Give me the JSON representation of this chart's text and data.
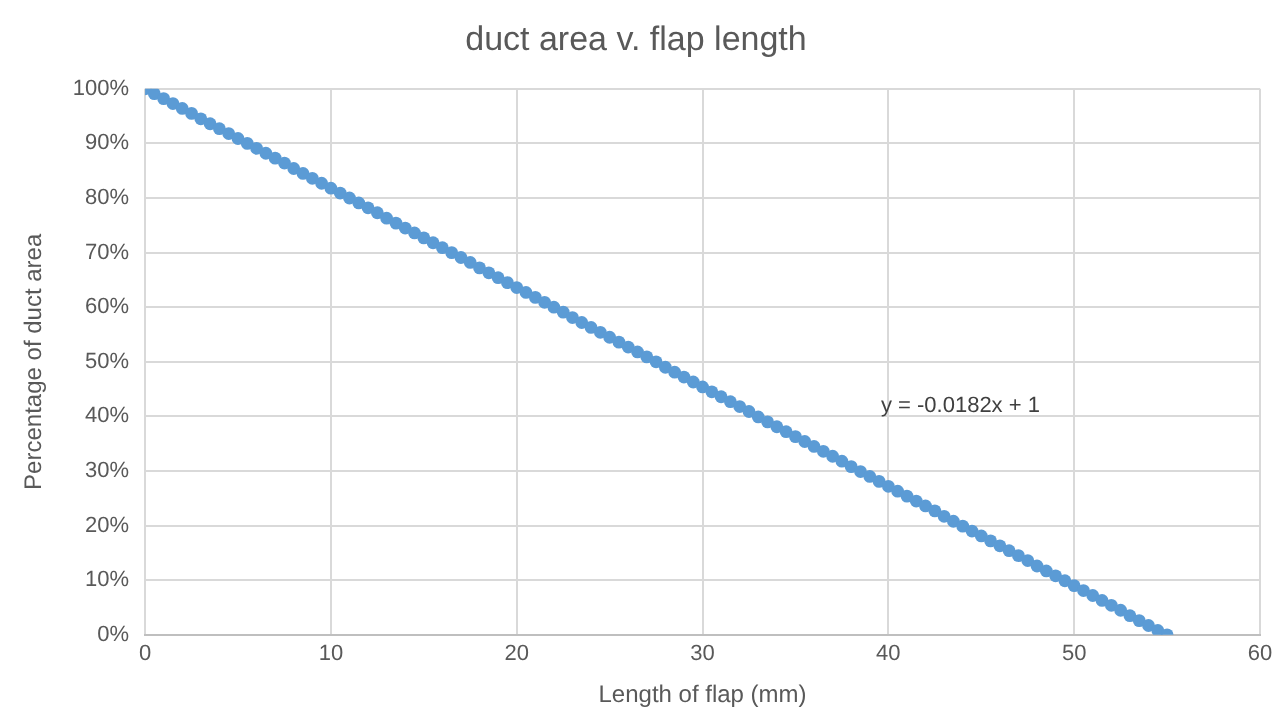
{
  "chart_data": {
    "type": "scatter",
    "title": "duct area v. flap length",
    "xlabel": "Length of flap (mm)",
    "ylabel": "Percentage of duct area",
    "x": [
      0,
      0.5,
      1,
      1.5,
      2,
      2.5,
      3,
      3.5,
      4,
      4.5,
      5,
      5.5,
      6,
      6.5,
      7,
      7.5,
      8,
      8.5,
      9,
      9.5,
      10,
      10.5,
      11,
      11.5,
      12,
      12.5,
      13,
      13.5,
      14,
      14.5,
      15,
      15.5,
      16,
      16.5,
      17,
      17.5,
      18,
      18.5,
      19,
      19.5,
      20,
      20.5,
      21,
      21.5,
      22,
      22.5,
      23,
      23.5,
      24,
      24.5,
      25,
      25.5,
      26,
      26.5,
      27,
      27.5,
      28,
      28.5,
      29,
      29.5,
      30,
      30.5,
      31,
      31.5,
      32,
      32.5,
      33,
      33.5,
      34,
      34.5,
      35,
      35.5,
      36,
      36.5,
      37,
      37.5,
      38,
      38.5,
      39,
      39.5,
      40,
      40.5,
      41,
      41.5,
      42,
      42.5,
      43,
      43.5,
      44,
      44.5,
      45,
      45.5,
      46,
      46.5,
      47,
      47.5,
      48,
      48.5,
      49,
      49.5,
      50,
      50.5,
      51,
      51.5,
      52,
      52.5,
      53,
      53.5,
      54,
      54.5,
      55
    ],
    "series": [
      {
        "color": "#5b9bd5",
        "values": [
          100,
          99.1,
          98.2,
          97.3,
          96.4,
          95.5,
          94.5,
          93.6,
          92.7,
          91.8,
          90.9,
          90,
          89.1,
          88.2,
          87.3,
          86.4,
          85.4,
          84.5,
          83.6,
          82.7,
          81.8,
          80.9,
          80,
          79.1,
          78.2,
          77.3,
          76.3,
          75.4,
          74.5,
          73.6,
          72.7,
          71.8,
          70.9,
          70,
          69.1,
          68.2,
          67.2,
          66.3,
          65.4,
          64.5,
          63.6,
          62.7,
          61.8,
          60.9,
          60,
          59.1,
          58.1,
          57.2,
          56.3,
          55.4,
          54.5,
          53.6,
          52.7,
          51.8,
          50.9,
          50,
          49,
          48.1,
          47.2,
          46.3,
          45.4,
          44.5,
          43.6,
          42.7,
          41.8,
          40.9,
          39.9,
          39,
          38.1,
          37.2,
          36.3,
          35.4,
          34.5,
          33.6,
          32.7,
          31.8,
          30.8,
          29.9,
          29,
          28.1,
          27.2,
          26.3,
          25.4,
          24.5,
          23.6,
          22.7,
          21.7,
          20.8,
          19.9,
          19,
          18.1,
          17.2,
          16.3,
          15.4,
          14.5,
          13.6,
          12.6,
          11.7,
          10.8,
          9.9,
          9,
          8.1,
          7.2,
          6.3,
          5.4,
          4.5,
          3.5,
          2.6,
          1.7,
          0.8,
          0
        ]
      }
    ],
    "xlim": [
      0,
      60
    ],
    "xticks": [
      0,
      10,
      20,
      30,
      40,
      50,
      60
    ],
    "ylim": [
      0,
      100
    ],
    "yticks": [
      {
        "value": 0,
        "label": "0%"
      },
      {
        "value": 10,
        "label": "10%"
      },
      {
        "value": 20,
        "label": "20%"
      },
      {
        "value": 30,
        "label": "30%"
      },
      {
        "value": 40,
        "label": "40%"
      },
      {
        "value": 50,
        "label": "50%"
      },
      {
        "value": 60,
        "label": "60%"
      },
      {
        "value": 70,
        "label": "70%"
      },
      {
        "value": 80,
        "label": "80%"
      },
      {
        "value": 90,
        "label": "90%"
      },
      {
        "value": 100,
        "label": "100%"
      }
    ],
    "annotations": [
      "y = -0.0182x + 1"
    ],
    "grid": true,
    "legend": false,
    "marker": "circle"
  }
}
